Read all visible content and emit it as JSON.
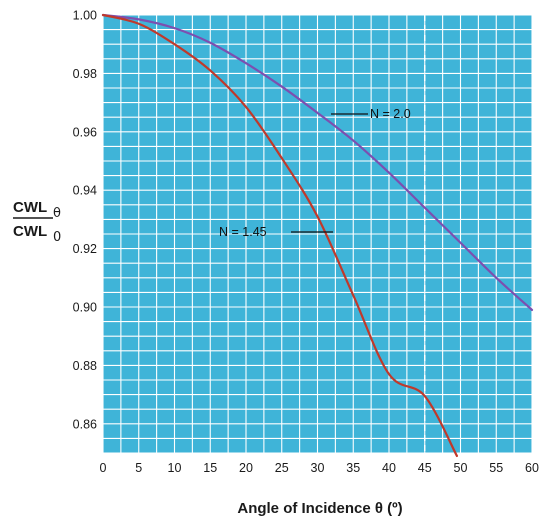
{
  "chart_data": {
    "type": "line",
    "xlabel": "Angle of Incidence θ (º)",
    "ylabel": {
      "numerator": "CWL",
      "numerator_sub": "θ",
      "denominator": "CWL",
      "denominator_sub": "0"
    },
    "xlim": [
      0,
      60
    ],
    "ylim": [
      0.85,
      1.0
    ],
    "xticks": [
      "0",
      "5",
      "10",
      "15",
      "20",
      "25",
      "30",
      "35",
      "40",
      "45",
      "50",
      "55",
      "60"
    ],
    "yticks": [
      "0.86",
      "0.88",
      "0.90",
      "0.92",
      "0.94",
      "0.96",
      "0.98",
      "1.00"
    ],
    "grid": true,
    "reference_line": {
      "x": 45,
      "style": "dashed"
    },
    "series": [
      {
        "name": "N = 2.0",
        "color": "#7c4fb0",
        "x": [
          0,
          5,
          10,
          15,
          20,
          25,
          30,
          35,
          40,
          45,
          50,
          55,
          60
        ],
        "y": [
          1.0,
          0.9985,
          0.9955,
          0.9905,
          0.9835,
          0.9755,
          0.9665,
          0.957,
          0.946,
          0.934,
          0.922,
          0.91,
          0.899
        ]
      },
      {
        "name": "N = 1.45",
        "color": "#c0392b",
        "x": [
          0,
          5,
          10,
          15,
          20,
          25,
          30,
          35,
          40,
          45,
          49.5
        ],
        "y": [
          1.0,
          0.997,
          0.99,
          0.981,
          0.9685,
          0.951,
          0.931,
          0.904,
          0.877,
          0.8695,
          0.849
        ]
      }
    ],
    "annotations": [
      {
        "text": "N = 2.0",
        "series": "N = 2.0"
      },
      {
        "text": "N  =  1.45",
        "series": "N = 1.45"
      }
    ],
    "colors": {
      "plot_background": "#3fb4d8",
      "grid": "#ffffff"
    }
  }
}
